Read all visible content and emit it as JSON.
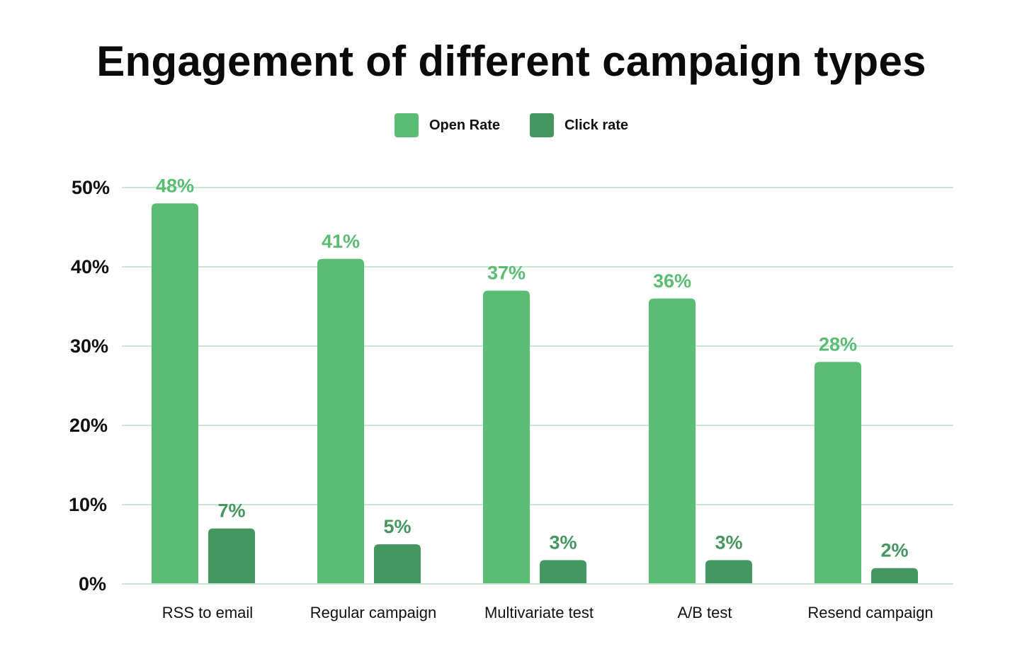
{
  "chart_data": {
    "type": "bar",
    "title": "Engagement of different campaign types",
    "xlabel": "",
    "ylabel": "",
    "ylim": [
      0,
      50
    ],
    "yticks": [
      0,
      10,
      20,
      30,
      40,
      50
    ],
    "ytick_labels": [
      "0%",
      "10%",
      "20%",
      "30%",
      "40%",
      "50%"
    ],
    "grid": true,
    "legend_position": "top-center",
    "categories": [
      "RSS to email",
      "Regular campaign",
      "Multivariate test",
      "A/B test",
      "Resend campaign"
    ],
    "series": [
      {
        "name": "Open Rate",
        "color": "#5bbd73",
        "label_color": "#5bbd73",
        "values": [
          48,
          41,
          37,
          36,
          28
        ],
        "labels": [
          "48%",
          "41%",
          "37%",
          "36%",
          "28%"
        ]
      },
      {
        "name": "Click rate",
        "color": "#45965f",
        "label_color": "#45965f",
        "values": [
          7,
          5,
          3,
          3,
          2
        ],
        "labels": [
          "7%",
          "5%",
          "3%",
          "3%",
          "2%"
        ]
      }
    ],
    "grid_color": "#c8ead3"
  }
}
